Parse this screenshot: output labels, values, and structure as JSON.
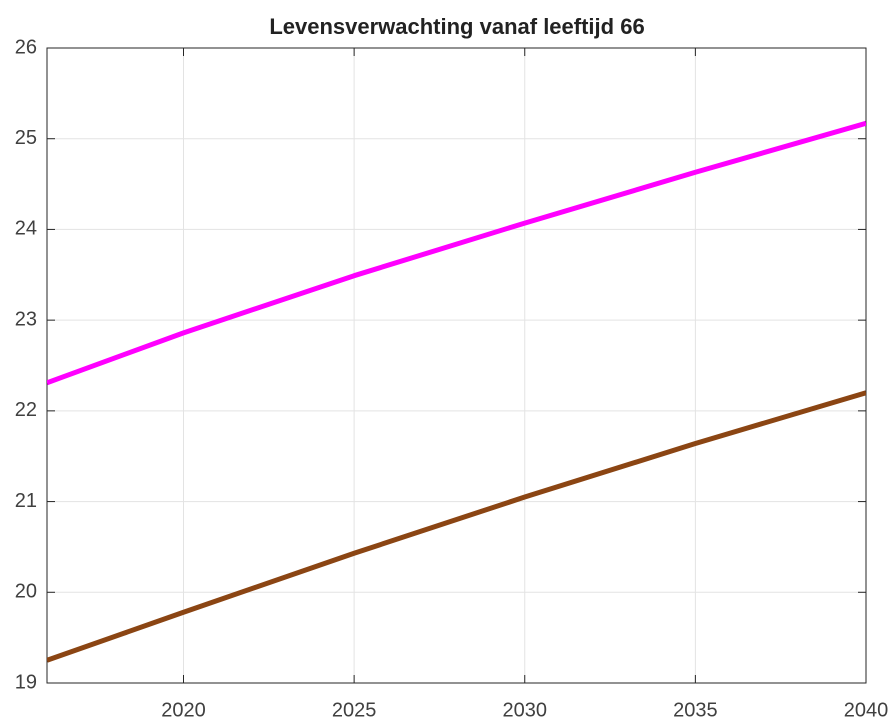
{
  "chart_data": {
    "type": "line",
    "title": "Levensverwachting vanaf leeftijd 66",
    "x": [
      2016,
      2020,
      2025,
      2030,
      2035,
      2040
    ],
    "series": [
      {
        "color": "#ff00ff",
        "values": [
          22.31,
          22.86,
          23.49,
          24.07,
          24.63,
          25.17
        ]
      },
      {
        "color": "#8b4513",
        "values": [
          19.25,
          19.78,
          20.43,
          21.05,
          21.64,
          22.2
        ]
      }
    ],
    "xlim": [
      2016,
      2040
    ],
    "xticks": [
      2020,
      2025,
      2030,
      2035,
      2040
    ],
    "ylim": [
      19,
      26
    ],
    "yticks": [
      19,
      20,
      21,
      22,
      23,
      24,
      25,
      26
    ],
    "grid": true
  }
}
